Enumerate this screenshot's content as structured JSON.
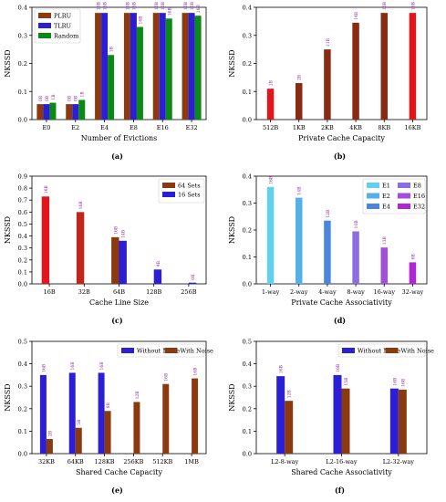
{
  "chart_data": [
    {
      "panel": "(a)",
      "type": "bar",
      "xlabel": "Number of Evictions",
      "ylabel": "NKSSD",
      "ylim": [
        0,
        0.4
      ],
      "yticks": [
        0,
        0.1,
        0.2,
        0.3,
        0.4
      ],
      "ytick_decimals": 1,
      "categories": [
        "E0",
        "E2",
        "E4",
        "E8",
        "E16",
        "E32"
      ],
      "legend_position": "top-left",
      "series": [
        {
          "name": "PLRU",
          "color": "#8b3a0f",
          "values": [
            0.055,
            0.055,
            0.38,
            0.38,
            0.38,
            0.38
          ],
          "labels": [
            "0B",
            "0B",
            "16B",
            "16B",
            "16B",
            "16B"
          ]
        },
        {
          "name": "TLRU",
          "color": "#2a1fd6",
          "values": [
            0.055,
            0.055,
            0.38,
            0.38,
            0.38,
            0.38
          ],
          "labels": [
            "0B",
            "0B",
            "16B",
            "16B",
            "16B",
            "16B"
          ]
        },
        {
          "name": "Random",
          "color": "#0a8a14",
          "values": [
            0.06,
            0.07,
            0.23,
            0.33,
            0.36,
            0.37
          ],
          "labels": [
            "1B",
            "1B",
            "1B",
            "16B",
            "16B",
            "16B"
          ]
        }
      ]
    },
    {
      "panel": "(b)",
      "type": "bar",
      "xlabel": "Private Cache Capacity",
      "ylabel": "NKSSD",
      "ylim": [
        0,
        0.4
      ],
      "yticks": [
        0,
        0.1,
        0.2,
        0.3,
        0.4
      ],
      "ytick_decimals": 1,
      "categories": [
        "512B",
        "1KB",
        "2KB",
        "4KB",
        "8KB",
        "16KB"
      ],
      "series": [
        {
          "name": "",
          "colors": [
            "#e0161c",
            "#8b2a12",
            "#8b2a12",
            "#8b2a12",
            "#8b2a12",
            "#e0161c"
          ],
          "values": [
            0.11,
            0.13,
            0.25,
            0.345,
            0.38,
            0.38
          ],
          "labels": [
            "1B",
            "2B",
            "11B",
            "14B",
            "16B",
            "16B"
          ]
        }
      ]
    },
    {
      "panel": "(c)",
      "type": "bar",
      "xlabel": "Cache Line Size",
      "ylabel": "NKSSD",
      "ylim": [
        0,
        0.9
      ],
      "yticks": [
        0,
        0.1,
        0.2,
        0.3,
        0.4,
        0.5,
        0.6,
        0.7,
        0.8,
        0.9
      ],
      "ytick_decimals": 1,
      "categories": [
        "16B",
        "32B",
        "64B",
        "128B",
        "256B"
      ],
      "legend_position": "top-right",
      "series": [
        {
          "name": "64 Sets",
          "colors": [
            "#e0161c",
            "#c0261a",
            "#8b3a0f",
            "#8b3a0f",
            "#8b3a0f"
          ],
          "values": [
            0.73,
            0.6,
            0.39,
            null,
            null
          ],
          "labels": [
            "16B",
            "16B",
            "16B",
            "",
            ""
          ]
        },
        {
          "name": "16 Sets",
          "color": "#2a1fd6",
          "values": [
            null,
            null,
            0.36,
            0.12,
            0.01
          ],
          "labels": [
            "",
            "",
            "14B",
            "4B",
            "0B"
          ]
        }
      ]
    },
    {
      "panel": "(d)",
      "type": "bar",
      "xlabel": "Private Cache Associativity",
      "ylabel": "NKSSD",
      "ylim": [
        0,
        0.4
      ],
      "yticks": [
        0,
        0.1,
        0.2,
        0.3,
        0.4
      ],
      "ytick_decimals": 1,
      "categories": [
        "1-way",
        "2-way",
        "4-way",
        "8-way",
        "16-way",
        "32-way"
      ],
      "legend_position": "top-right",
      "legend": [
        {
          "name": "E1",
          "color": "#5fd0ee"
        },
        {
          "name": "E2",
          "color": "#55b0ea"
        },
        {
          "name": "E4",
          "color": "#4a86e0"
        },
        {
          "name": "E8",
          "color": "#8a6ee2"
        },
        {
          "name": "E16",
          "color": "#a24ddc"
        },
        {
          "name": "E32",
          "color": "#b025d6"
        }
      ],
      "series": [
        {
          "name": "",
          "colors": [
            "#5fd0ee",
            "#55b0ea",
            "#4a86e0",
            "#8a6ee2",
            "#a24ddc",
            "#b025d6"
          ],
          "values": [
            0.36,
            0.32,
            0.235,
            0.195,
            0.135,
            0.08
          ],
          "labels": [
            "16B",
            "14B",
            "12B",
            "10B",
            "13B",
            "6B"
          ]
        }
      ]
    },
    {
      "panel": "(e)",
      "type": "bar",
      "xlabel": "Shared Cache Capacity",
      "ylabel": "NKSSD",
      "ylim": [
        0,
        0.5
      ],
      "yticks": [
        0,
        0.1,
        0.2,
        0.3,
        0.4,
        0.5
      ],
      "ytick_decimals": 1,
      "categories": [
        "32KB",
        "64KB",
        "128KB",
        "256KB",
        "512KB",
        "1MB"
      ],
      "legend_position": "top-right",
      "series": [
        {
          "name": "Without Noise",
          "color": "#2a1fd6",
          "values": [
            0.35,
            0.36,
            0.36,
            null,
            null,
            null
          ],
          "labels": [
            "16B",
            "16B",
            "16B",
            "",
            "",
            ""
          ]
        },
        {
          "name": "With Noise",
          "color": "#8b3a0f",
          "values": [
            0.065,
            0.115,
            0.19,
            0.23,
            0.31,
            0.335
          ],
          "labels": [
            "2B",
            "5B",
            "8B",
            "12B",
            "16B",
            "16B"
          ]
        }
      ]
    },
    {
      "panel": "(f)",
      "type": "bar",
      "xlabel": "Shared Cache Associativity",
      "ylabel": "NKSSD",
      "ylim": [
        0,
        0.5
      ],
      "yticks": [
        0,
        0.1,
        0.2,
        0.3,
        0.4,
        0.5
      ],
      "ytick_decimals": 1,
      "categories": [
        "L2-8-way",
        "L2-16-way",
        "L2-32-way"
      ],
      "legend_position": "top-right",
      "series": [
        {
          "name": "Without Noise",
          "color": "#2a1fd6",
          "values": [
            0.345,
            0.35,
            0.29
          ],
          "labels": [
            "16B",
            "16B",
            "16B"
          ]
        },
        {
          "name": "With Noise",
          "color": "#8b3a0f",
          "values": [
            0.235,
            0.29,
            0.285
          ],
          "labels": [
            "12B",
            "15B",
            "16B"
          ]
        }
      ]
    }
  ]
}
